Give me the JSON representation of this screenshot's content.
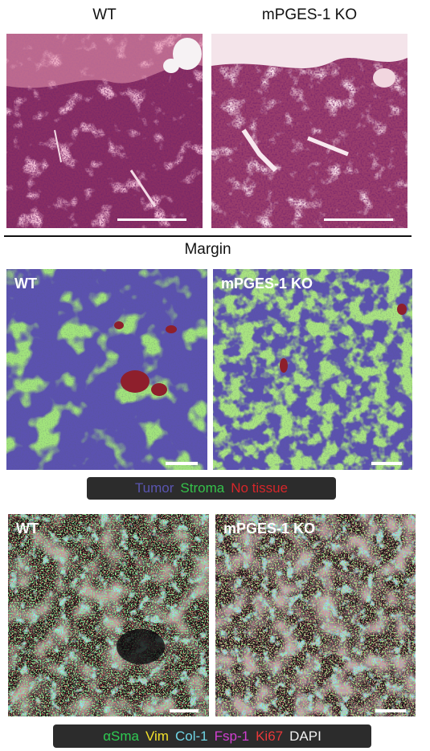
{
  "he_section": {
    "wt_label": "WT",
    "ko_label": "mPGES-1 KO",
    "divider_label": "Margin"
  },
  "classification_section": {
    "wt_label": "WT",
    "ko_label": "mPGES-1 KO",
    "legend": [
      {
        "text": "Tumor",
        "color": "#5a55b0"
      },
      {
        "text": "Stroma",
        "color": "#35c24a"
      },
      {
        "text": "No tissue",
        "color": "#d6262a"
      }
    ]
  },
  "fluorescence_section": {
    "wt_label": "WT",
    "ko_label": "mPGES-1 KO",
    "legend": [
      {
        "text": "αSma",
        "color": "#2ecc52"
      },
      {
        "text": "Vim",
        "color": "#f2e12a"
      },
      {
        "text": "Col-1",
        "color": "#6fd6e6"
      },
      {
        "text": "Fsp-1",
        "color": "#d23fd2"
      },
      {
        "text": "Ki67",
        "color": "#e8383a"
      },
      {
        "text": "DAPI",
        "color": "#f2f2f2"
      }
    ]
  }
}
